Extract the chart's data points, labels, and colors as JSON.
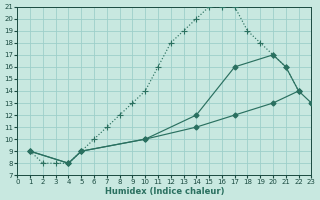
{
  "xlabel": "Humidex (Indice chaleur)",
  "bg_color": "#c8e8e0",
  "grid_color": "#9ecfca",
  "line_color": "#2a7060",
  "xlim": [
    0,
    23
  ],
  "ylim": [
    7,
    21
  ],
  "xticks": [
    0,
    1,
    2,
    3,
    4,
    5,
    6,
    7,
    8,
    9,
    10,
    11,
    12,
    13,
    14,
    15,
    16,
    17,
    18,
    19,
    20,
    21,
    22,
    23
  ],
  "yticks": [
    7,
    8,
    9,
    10,
    11,
    12,
    13,
    14,
    15,
    16,
    17,
    18,
    19,
    20,
    21
  ],
  "line1_x": [
    1,
    2,
    3,
    4,
    5,
    6,
    7,
    8,
    9,
    10,
    11,
    12,
    13,
    14,
    15,
    16,
    17,
    18,
    19,
    20,
    21,
    22
  ],
  "line1_y": [
    9,
    8,
    8,
    8,
    9,
    10,
    11,
    12,
    13,
    14,
    16,
    18,
    19,
    20,
    21,
    21,
    21,
    19,
    18,
    17,
    16,
    14
  ],
  "line2_x": [
    1,
    4,
    5,
    10,
    14,
    17,
    20,
    21,
    22
  ],
  "line2_y": [
    9,
    8,
    9,
    10,
    12,
    16,
    17,
    16,
    14
  ],
  "line3_x": [
    1,
    4,
    5,
    10,
    14,
    17,
    20,
    22,
    23
  ],
  "line3_y": [
    9,
    8,
    9,
    10,
    11,
    12,
    13,
    14,
    13
  ]
}
